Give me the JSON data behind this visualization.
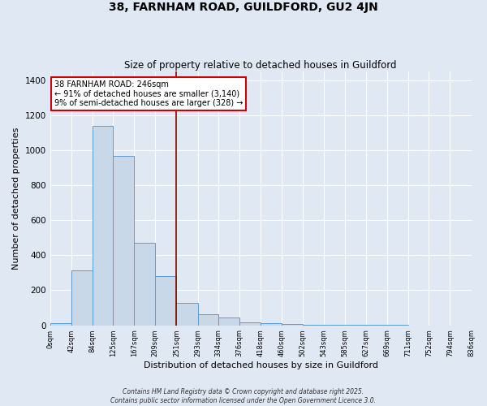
{
  "title1": "38, FARNHAM ROAD, GUILDFORD, GU2 4JN",
  "title2": "Size of property relative to detached houses in Guildford",
  "xlabel": "Distribution of detached houses by size in Guildford",
  "ylabel": "Number of detached properties",
  "bin_edges": [
    0,
    42,
    84,
    125,
    167,
    209,
    251,
    293,
    334,
    376,
    418,
    460,
    502,
    543,
    585,
    627,
    669,
    711,
    752,
    794,
    836
  ],
  "bar_heights": [
    10,
    315,
    1140,
    970,
    470,
    280,
    130,
    65,
    45,
    15,
    10,
    8,
    5,
    3,
    2,
    1,
    1,
    0,
    0,
    0
  ],
  "bar_color": "#c8d8e8",
  "bar_edge_color": "#5b9bd5",
  "bg_color": "#e0e8f4",
  "grid_color": "#ffffff",
  "vline_x": 251,
  "vline_color": "#8b0000",
  "annotation_text": "38 FARNHAM ROAD: 246sqm\n← 91% of detached houses are smaller (3,140)\n9% of semi-detached houses are larger (328) →",
  "annotation_box_color": "#ffffff",
  "annotation_border_color": "#cc0000",
  "ylim": [
    0,
    1450
  ],
  "yticks": [
    0,
    200,
    400,
    600,
    800,
    1000,
    1200,
    1400
  ],
  "xtick_labels": [
    "0sqm",
    "42sqm",
    "84sqm",
    "125sqm",
    "167sqm",
    "209sqm",
    "251sqm",
    "293sqm",
    "334sqm",
    "376sqm",
    "418sqm",
    "460sqm",
    "502sqm",
    "543sqm",
    "585sqm",
    "627sqm",
    "669sqm",
    "711sqm",
    "752sqm",
    "794sqm",
    "836sqm"
  ],
  "footnote1": "Contains HM Land Registry data © Crown copyright and database right 2025.",
  "footnote2": "Contains public sector information licensed under the Open Government Licence 3.0."
}
